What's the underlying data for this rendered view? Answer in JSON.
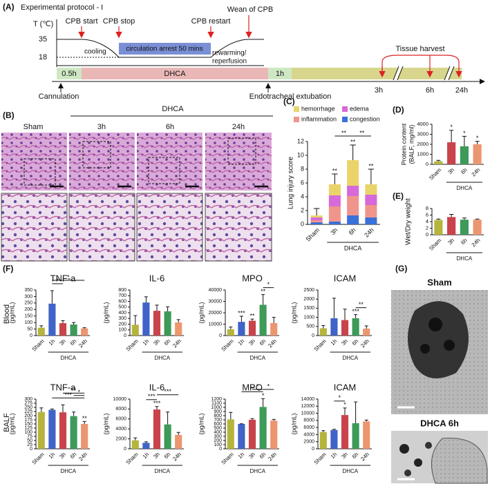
{
  "protocol": {
    "label": "(A)",
    "title": "Experimental protocol - I",
    "temp_axis": "T (℃)",
    "temps": [
      35,
      18
    ],
    "events": [
      "CPB start",
      "CPB stop",
      "CPB restart",
      "Wean of CPB"
    ],
    "phases": [
      "cooling",
      "circulation arrest 50 mins",
      "rewarming/",
      "reperfusion"
    ],
    "segments": [
      "0.5h",
      "DHCA",
      "1h"
    ],
    "milestones": [
      "Cannulation",
      "Endotracheal extubation"
    ],
    "harvest": "Tissue harvest",
    "times": [
      "3h",
      "6h",
      "24h"
    ]
  },
  "histology": {
    "label": "(B)",
    "group": "DHCA",
    "columns": [
      "Sham",
      "3h",
      "6h",
      "24h"
    ]
  },
  "panel_labels": [
    "(C)",
    "(D)",
    "(E)"
  ],
  "panel_f": {
    "label": "(F)",
    "rows": [
      "Blood",
      "BALF"
    ]
  },
  "em": {
    "label": "(G)",
    "images": [
      "Sham",
      "DHCA 6h"
    ]
  },
  "chart_data": [
    {
      "type": "stacked_bar",
      "ylabel": "Lung injury score",
      "categories": [
        "Sham",
        "3h",
        "6h",
        "24h"
      ],
      "group": "DHCA",
      "series": [
        {
          "name": "hemorrhage",
          "color": "#ead46a",
          "values": [
            0.3,
            1.6,
            3.7,
            1.5
          ]
        },
        {
          "name": "edema",
          "color": "#d56ad8",
          "values": [
            0.4,
            1.6,
            1.5,
            1.5
          ]
        },
        {
          "name": "inflammation",
          "color": "#f0958c",
          "values": [
            0.3,
            2.2,
            2.8,
            1.8
          ]
        },
        {
          "name": "congestion",
          "color": "#3b6fd9",
          "values": [
            0.3,
            0.4,
            1.3,
            1.0
          ]
        }
      ],
      "errors": [
        1.0,
        1.5,
        2.2,
        2.2
      ],
      "stars": [
        null,
        "**",
        "**",
        "**"
      ],
      "brackets": [
        "**",
        "**"
      ],
      "ylim": [
        0,
        12
      ],
      "yticks": [
        0,
        2,
        4,
        6,
        8,
        10,
        12
      ]
    },
    {
      "type": "bar",
      "ylabel": [
        "Protein content",
        "(BALF, mg/ml)"
      ],
      "categories": [
        "Sham",
        "3h",
        "6h",
        "24h"
      ],
      "group": "DHCA",
      "values": [
        300,
        2200,
        1800,
        2000
      ],
      "errors": [
        100,
        1200,
        1000,
        300
      ],
      "colors": [
        "#b5b53e",
        "#c9434b",
        "#3e9a58",
        "#ec9670"
      ],
      "stars": [
        null,
        "*",
        "*",
        "*"
      ],
      "ylim": [
        0,
        4000
      ],
      "yticks": [
        0,
        1000,
        2000,
        3000,
        4000
      ]
    },
    {
      "type": "bar",
      "ylabel": "Wet/Dry weight",
      "categories": [
        "Sham",
        "3h",
        "6h",
        "24h"
      ],
      "group": "DHCA",
      "values": [
        4.5,
        5.4,
        4.6,
        4.6
      ],
      "errors": [
        0.3,
        0.8,
        0.5,
        0.2
      ],
      "colors": [
        "#b5b53e",
        "#c9434b",
        "#3e9a58",
        "#ec9670"
      ],
      "ylim": [
        0,
        8
      ],
      "yticks": [
        0,
        2,
        4,
        6,
        8
      ]
    },
    {
      "type": "bar",
      "title": "TNF-a",
      "ylabel": "(pg/mL)",
      "categories": [
        "Sham",
        "1h",
        "3h",
        "6h",
        "24h"
      ],
      "group": "DHCA",
      "values": [
        60,
        245,
        95,
        85,
        55
      ],
      "errors": [
        15,
        100,
        20,
        15,
        5
      ],
      "colors": [
        "#b5b53e",
        "#3f63c8",
        "#c9434b",
        "#3e9a58",
        "#ec9670"
      ],
      "brackets": [
        "*",
        "*"
      ],
      "ylim": [
        0,
        350
      ],
      "yticks": [
        0,
        50,
        100,
        150,
        200,
        250,
        300,
        350
      ]
    },
    {
      "type": "bar",
      "title": "IL-6",
      "ylabel": "(pg/mL)",
      "categories": [
        "Sham",
        "1h",
        "3h",
        "6h",
        "24h"
      ],
      "group": "DHCA",
      "values": [
        190,
        580,
        435,
        425,
        230
      ],
      "errors": [
        160,
        100,
        100,
        80,
        50
      ],
      "colors": [
        "#b5b53e",
        "#3f63c8",
        "#c9434b",
        "#3e9a58",
        "#ec9670"
      ],
      "ylim": [
        0,
        800
      ],
      "yticks": [
        0,
        100,
        200,
        300,
        400,
        500,
        600,
        700,
        800
      ]
    },
    {
      "type": "bar",
      "title": "MPO",
      "ylabel": "(pg/mL)",
      "categories": [
        "Sham",
        "1h",
        "3h",
        "6h",
        "24h"
      ],
      "group": "DHCA",
      "values": [
        5500,
        12000,
        13000,
        27000,
        11000
      ],
      "errors": [
        2000,
        5000,
        1500,
        9000,
        5000
      ],
      "colors": [
        "#b5b53e",
        "#3f63c8",
        "#c9434b",
        "#3e9a58",
        "#ec9670"
      ],
      "stars": [
        null,
        "***",
        "**",
        "**",
        null
      ],
      "brackets": [
        "*"
      ],
      "ylim": [
        0,
        40000
      ],
      "yticks": [
        0,
        10000,
        20000,
        30000,
        40000
      ]
    },
    {
      "type": "bar",
      "title": "ICAM",
      "ylabel": "(pg/mL)",
      "categories": [
        "Sham",
        "1h",
        "3h",
        "6h",
        "24h"
      ],
      "group": "DHCA",
      "values": [
        400,
        950,
        850,
        950,
        380
      ],
      "errors": [
        150,
        1100,
        600,
        200,
        150
      ],
      "colors": [
        "#b5b53e",
        "#3f63c8",
        "#c9434b",
        "#3e9a58",
        "#ec9670"
      ],
      "stars": [
        null,
        null,
        null,
        "***",
        null
      ],
      "brackets": [
        "**"
      ],
      "ylim": [
        0,
        2500
      ],
      "yticks": [
        0,
        500,
        1000,
        1500,
        2000,
        2500
      ]
    },
    {
      "type": "bar",
      "title": "TNF-a",
      "ylabel": "(pg/mL)",
      "categories": [
        "Sham",
        "1h",
        "3h",
        "6h",
        "24h"
      ],
      "group": "DHCA",
      "values": [
        222,
        235,
        220,
        197,
        150
      ],
      "errors": [
        25,
        5,
        45,
        25,
        15
      ],
      "colors": [
        "#b5b53e",
        "#3f63c8",
        "#c9434b",
        "#3e9a58",
        "#ec9670"
      ],
      "stars": [
        null,
        null,
        null,
        null,
        "**"
      ],
      "brackets": [
        "***",
        "**",
        "*"
      ],
      "ylim": [
        0,
        300
      ],
      "yticks": [
        0,
        25,
        50,
        75,
        100,
        125,
        150,
        175,
        200,
        225,
        250,
        275,
        300
      ]
    },
    {
      "type": "bar",
      "title": "IL-6",
      "ylabel": "(pg/mL)",
      "categories": [
        "Sham",
        "1h",
        "3h",
        "6h",
        "24h"
      ],
      "group": "DHCA",
      "values": [
        1700,
        1200,
        7900,
        4900,
        2800
      ],
      "errors": [
        500,
        200,
        600,
        2500,
        500
      ],
      "colors": [
        "#b5b53e",
        "#3f63c8",
        "#c9434b",
        "#3e9a58",
        "#ec9670"
      ],
      "stars": [
        null,
        null,
        "***",
        null,
        null
      ],
      "brackets": [
        "***",
        "***"
      ],
      "ylim": [
        0,
        10000
      ],
      "yticks": [
        0,
        2000,
        4000,
        6000,
        8000,
        10000
      ]
    },
    {
      "type": "bar",
      "title": "MPO",
      "ylabel": "(pg/mL)",
      "categories": [
        "Sham",
        "1h",
        "3h",
        "6h",
        "24h"
      ],
      "group": "DHCA",
      "values": [
        710,
        600,
        700,
        1010,
        680
      ],
      "errors": [
        170,
        5,
        30,
        200,
        30
      ],
      "colors": [
        "#b5b53e",
        "#3f63c8",
        "#c9434b",
        "#3e9a58",
        "#ec9670"
      ],
      "stars": [
        null,
        null,
        null,
        "*",
        null
      ],
      "brackets": [
        "**",
        "*",
        "*"
      ],
      "ylim": [
        0,
        1200
      ],
      "yticks": [
        0,
        100,
        200,
        300,
        400,
        500,
        600,
        700,
        800,
        900,
        1000,
        1100,
        1200
      ]
    },
    {
      "type": "bar",
      "title": "ICAM",
      "ylabel": "(pg/mL)",
      "categories": [
        "Sham",
        "1h",
        "3h",
        "6h",
        "24h"
      ],
      "group": "DHCA",
      "values": [
        4700,
        5300,
        9500,
        7200,
        7700
      ],
      "errors": [
        400,
        200,
        2000,
        6000,
        400
      ],
      "colors": [
        "#b5b53e",
        "#3f63c8",
        "#c9434b",
        "#3e9a58",
        "#ec9670"
      ],
      "stars": [
        null,
        null,
        "*",
        null,
        null
      ],
      "brackets": [
        "*"
      ],
      "ylim": [
        0,
        14000
      ],
      "yticks": [
        0,
        2000,
        4000,
        6000,
        8000,
        10000,
        12000,
        14000
      ]
    }
  ]
}
